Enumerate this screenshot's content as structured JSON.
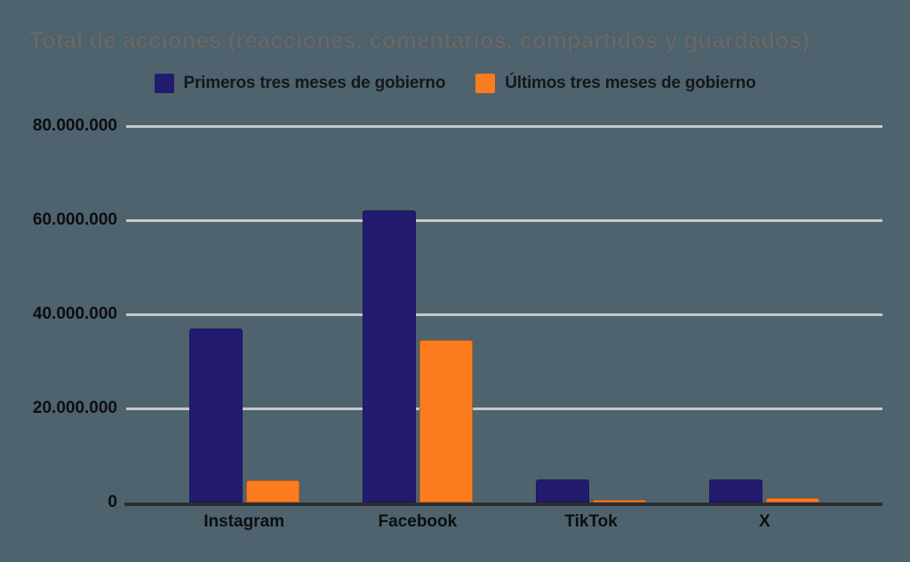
{
  "chart_data": {
    "type": "bar",
    "title": "Total de acciones (reacciones, comentarios, compartidos y guardados)",
    "categories": [
      "Instagram",
      "Facebook",
      "TikTok",
      "X"
    ],
    "series": [
      {
        "name": "Primeros tres meses de gobierno",
        "color": "#221B6E",
        "values": [
          37000000,
          62000000,
          5000000,
          5000000
        ]
      },
      {
        "name": "Últimos tres meses de gobierno",
        "color": "#FB7C1E",
        "values": [
          4800000,
          34600000,
          500000,
          1000000
        ]
      }
    ],
    "ylim": [
      0,
      80000000
    ],
    "ytick_interval": 20000000,
    "yticks": [
      {
        "value": 0,
        "label": "0"
      },
      {
        "value": 20000000,
        "label": "20.000.000"
      },
      {
        "value": 40000000,
        "label": "40.000.000"
      },
      {
        "value": 60000000,
        "label": "60.000.000"
      },
      {
        "value": 80000000,
        "label": "80.000.000"
      }
    ],
    "grid": true,
    "legend_position": "top",
    "colors": {
      "background": "#4E636D",
      "gridline": "#C6C9CB",
      "axis_line": "#2A2E32",
      "title_text": "#64686B",
      "tick_text": "#0C0E10",
      "legend_text": "#15181B"
    }
  }
}
